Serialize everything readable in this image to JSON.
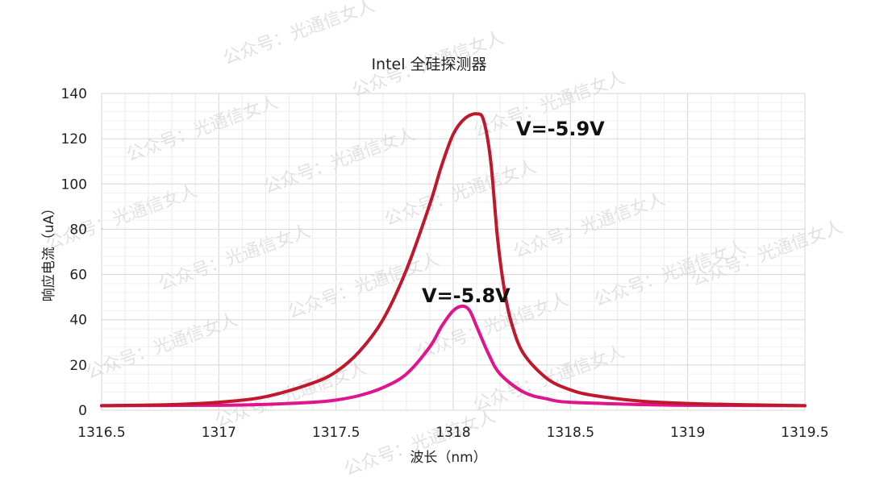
{
  "chart_data": {
    "type": "line",
    "title": "Intel 全硅探测器",
    "xlabel": "波长（nm）",
    "ylabel": "响应电流（uA）",
    "xlim": [
      1316.5,
      1319.5
    ],
    "ylim": [
      0,
      140
    ],
    "x_ticks": [
      "1316.5",
      "1317",
      "1317.5",
      "1318",
      "1318.5",
      "1319",
      "1319.5"
    ],
    "y_ticks": [
      "0",
      "20",
      "40",
      "60",
      "80",
      "100",
      "120",
      "140"
    ],
    "grid": true,
    "series": [
      {
        "name": "V=-5.9V",
        "color": "#c0172d",
        "x": [
          1316.5,
          1316.8,
          1317.0,
          1317.2,
          1317.4,
          1317.5,
          1317.6,
          1317.7,
          1317.8,
          1317.9,
          1317.95,
          1318.0,
          1318.05,
          1318.1,
          1318.13,
          1318.16,
          1318.19,
          1318.22,
          1318.25,
          1318.3,
          1318.4,
          1318.5,
          1318.6,
          1318.8,
          1319.0,
          1319.2,
          1319.5
        ],
        "y": [
          2,
          2.5,
          3.5,
          6,
          12,
          17,
          26,
          40,
          62,
          91,
          108,
          122,
          129,
          131,
          128,
          110,
          75,
          52,
          38,
          25,
          14,
          9,
          6.5,
          4,
          3,
          2.5,
          2
        ]
      },
      {
        "name": "V=-5.8V",
        "color": "#e0148c",
        "x": [
          1316.5,
          1317.0,
          1317.2,
          1317.4,
          1317.5,
          1317.6,
          1317.7,
          1317.8,
          1317.9,
          1317.95,
          1318.0,
          1318.04,
          1318.07,
          1318.1,
          1318.15,
          1318.2,
          1318.3,
          1318.4,
          1318.5,
          1318.8,
          1319.0,
          1319.5
        ],
        "y": [
          2,
          2.2,
          2.6,
          3.5,
          4.5,
          6.5,
          10,
          16,
          28,
          37,
          44,
          46,
          44,
          37,
          25,
          16,
          8,
          5,
          3.5,
          2.5,
          2.2,
          2
        ]
      }
    ],
    "annotations": [
      "V=-5.9V",
      "V=-5.8V"
    ]
  },
  "watermark": "公众号：光通信女人"
}
